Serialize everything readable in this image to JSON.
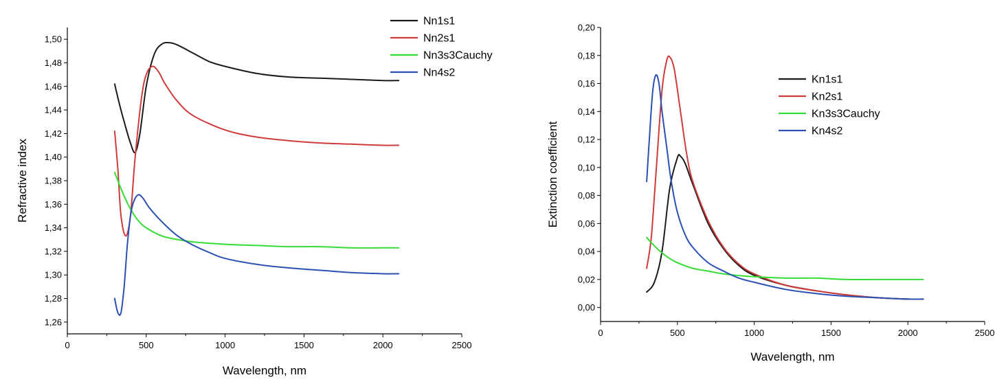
{
  "chart_data": [
    {
      "type": "line",
      "xlabel": "Wavelength, nm",
      "ylabel": "Refractive index",
      "xlim": [
        0,
        2500
      ],
      "ylim": [
        1.25,
        1.51
      ],
      "xticks": [
        0,
        500,
        1000,
        1500,
        2000,
        2500
      ],
      "xtick_labels": [
        "0",
        "500",
        "1000",
        "1500",
        "2000",
        "2500"
      ],
      "yticks": [
        1.26,
        1.28,
        1.3,
        1.32,
        1.34,
        1.36,
        1.38,
        1.4,
        1.42,
        1.44,
        1.46,
        1.48,
        1.5
      ],
      "ytick_labels": [
        "1,26",
        "1,28",
        "1,30",
        "1,32",
        "1,34",
        "1,36",
        "1,38",
        "1,40",
        "1,42",
        "1,44",
        "1,46",
        "1,48",
        "1,50"
      ],
      "legend_position": "top-right",
      "series": [
        {
          "name": "Nn1s1",
          "color": "#1a1a1a",
          "x": [
            300,
            330,
            360,
            400,
            430,
            460,
            500,
            550,
            600,
            650,
            700,
            800,
            900,
            1000,
            1200,
            1400,
            1600,
            1800,
            2000,
            2100
          ],
          "y": [
            1.462,
            1.445,
            1.43,
            1.412,
            1.404,
            1.42,
            1.46,
            1.487,
            1.496,
            1.497,
            1.495,
            1.488,
            1.481,
            1.477,
            1.471,
            1.468,
            1.467,
            1.466,
            1.465,
            1.465
          ]
        },
        {
          "name": "Nn2s1",
          "color": "#d03a3a",
          "x": [
            300,
            320,
            340,
            370,
            400,
            430,
            470,
            500,
            540,
            580,
            620,
            700,
            800,
            1000,
            1200,
            1400,
            1600,
            1800,
            2000,
            2100
          ],
          "y": [
            1.422,
            1.39,
            1.35,
            1.333,
            1.35,
            1.4,
            1.45,
            1.47,
            1.477,
            1.472,
            1.462,
            1.447,
            1.435,
            1.423,
            1.417,
            1.414,
            1.412,
            1.411,
            1.41,
            1.41
          ]
        },
        {
          "name": "Nn3s3Cauchy",
          "color": "#33dd33",
          "x": [
            300,
            350,
            400,
            450,
            500,
            600,
            700,
            800,
            1000,
            1200,
            1400,
            1600,
            1800,
            2000,
            2100
          ],
          "y": [
            1.387,
            1.37,
            1.356,
            1.346,
            1.34,
            1.333,
            1.33,
            1.328,
            1.326,
            1.325,
            1.324,
            1.324,
            1.323,
            1.323,
            1.323
          ]
        },
        {
          "name": "Nn4s2",
          "color": "#2a4fb5",
          "x": [
            300,
            320,
            340,
            360,
            380,
            400,
            420,
            450,
            480,
            520,
            600,
            700,
            800,
            900,
            1000,
            1200,
            1400,
            1600,
            1800,
            2000,
            2100
          ],
          "y": [
            1.28,
            1.268,
            1.268,
            1.29,
            1.325,
            1.35,
            1.362,
            1.368,
            1.365,
            1.357,
            1.345,
            1.333,
            1.325,
            1.319,
            1.314,
            1.309,
            1.306,
            1.304,
            1.302,
            1.301,
            1.301
          ]
        }
      ]
    },
    {
      "type": "line",
      "xlabel": "Wavelength, nm",
      "ylabel": "Extinction coefficient",
      "xlim": [
        0,
        2500
      ],
      "ylim": [
        -0.01,
        0.2
      ],
      "xticks": [
        0,
        500,
        1000,
        1500,
        2000,
        2500
      ],
      "xtick_labels": [
        "0",
        "500",
        "1000",
        "1500",
        "2000",
        "2500"
      ],
      "yticks": [
        0.0,
        0.02,
        0.04,
        0.06,
        0.08,
        0.1,
        0.12,
        0.14,
        0.16,
        0.18,
        0.2
      ],
      "ytick_labels": [
        "0,00",
        "0,02",
        "0,04",
        "0,06",
        "0,08",
        "0,10",
        "0,12",
        "0,14",
        "0,16",
        "0,18",
        "0,20"
      ],
      "legend_position": "top-right",
      "series": [
        {
          "name": "Kn1s1",
          "color": "#1a1a1a",
          "x": [
            300,
            350,
            400,
            450,
            500,
            520,
            550,
            600,
            700,
            800,
            900,
            1000,
            1200,
            1400,
            1600,
            1800,
            2000,
            2100
          ],
          "y": [
            0.011,
            0.018,
            0.04,
            0.085,
            0.107,
            0.108,
            0.103,
            0.088,
            0.06,
            0.042,
            0.03,
            0.023,
            0.016,
            0.012,
            0.009,
            0.007,
            0.006,
            0.006
          ]
        },
        {
          "name": "Kn2s1",
          "color": "#d03a3a",
          "x": [
            300,
            330,
            360,
            400,
            430,
            450,
            480,
            520,
            560,
            600,
            700,
            800,
            900,
            1000,
            1200,
            1400,
            1600,
            1800,
            2000,
            2100
          ],
          "y": [
            0.028,
            0.05,
            0.095,
            0.155,
            0.176,
            0.179,
            0.17,
            0.14,
            0.11,
            0.09,
            0.062,
            0.043,
            0.031,
            0.024,
            0.016,
            0.012,
            0.009,
            0.007,
            0.006,
            0.006
          ]
        },
        {
          "name": "Kn3s3Cauchy",
          "color": "#33dd33",
          "x": [
            300,
            350,
            400,
            450,
            500,
            600,
            700,
            800,
            1000,
            1200,
            1400,
            1600,
            1800,
            2000,
            2100
          ],
          "y": [
            0.05,
            0.044,
            0.039,
            0.035,
            0.032,
            0.028,
            0.026,
            0.024,
            0.022,
            0.021,
            0.021,
            0.02,
            0.02,
            0.02,
            0.02
          ]
        },
        {
          "name": "Kn4s2",
          "color": "#2a4fb5",
          "x": [
            300,
            320,
            340,
            360,
            380,
            400,
            430,
            460,
            500,
            550,
            600,
            700,
            800,
            900,
            1000,
            1200,
            1400,
            1600,
            1800,
            2000,
            2100
          ],
          "y": [
            0.09,
            0.125,
            0.155,
            0.166,
            0.16,
            0.14,
            0.115,
            0.09,
            0.068,
            0.052,
            0.043,
            0.032,
            0.026,
            0.021,
            0.018,
            0.013,
            0.01,
            0.008,
            0.007,
            0.006,
            0.006
          ]
        }
      ]
    }
  ]
}
